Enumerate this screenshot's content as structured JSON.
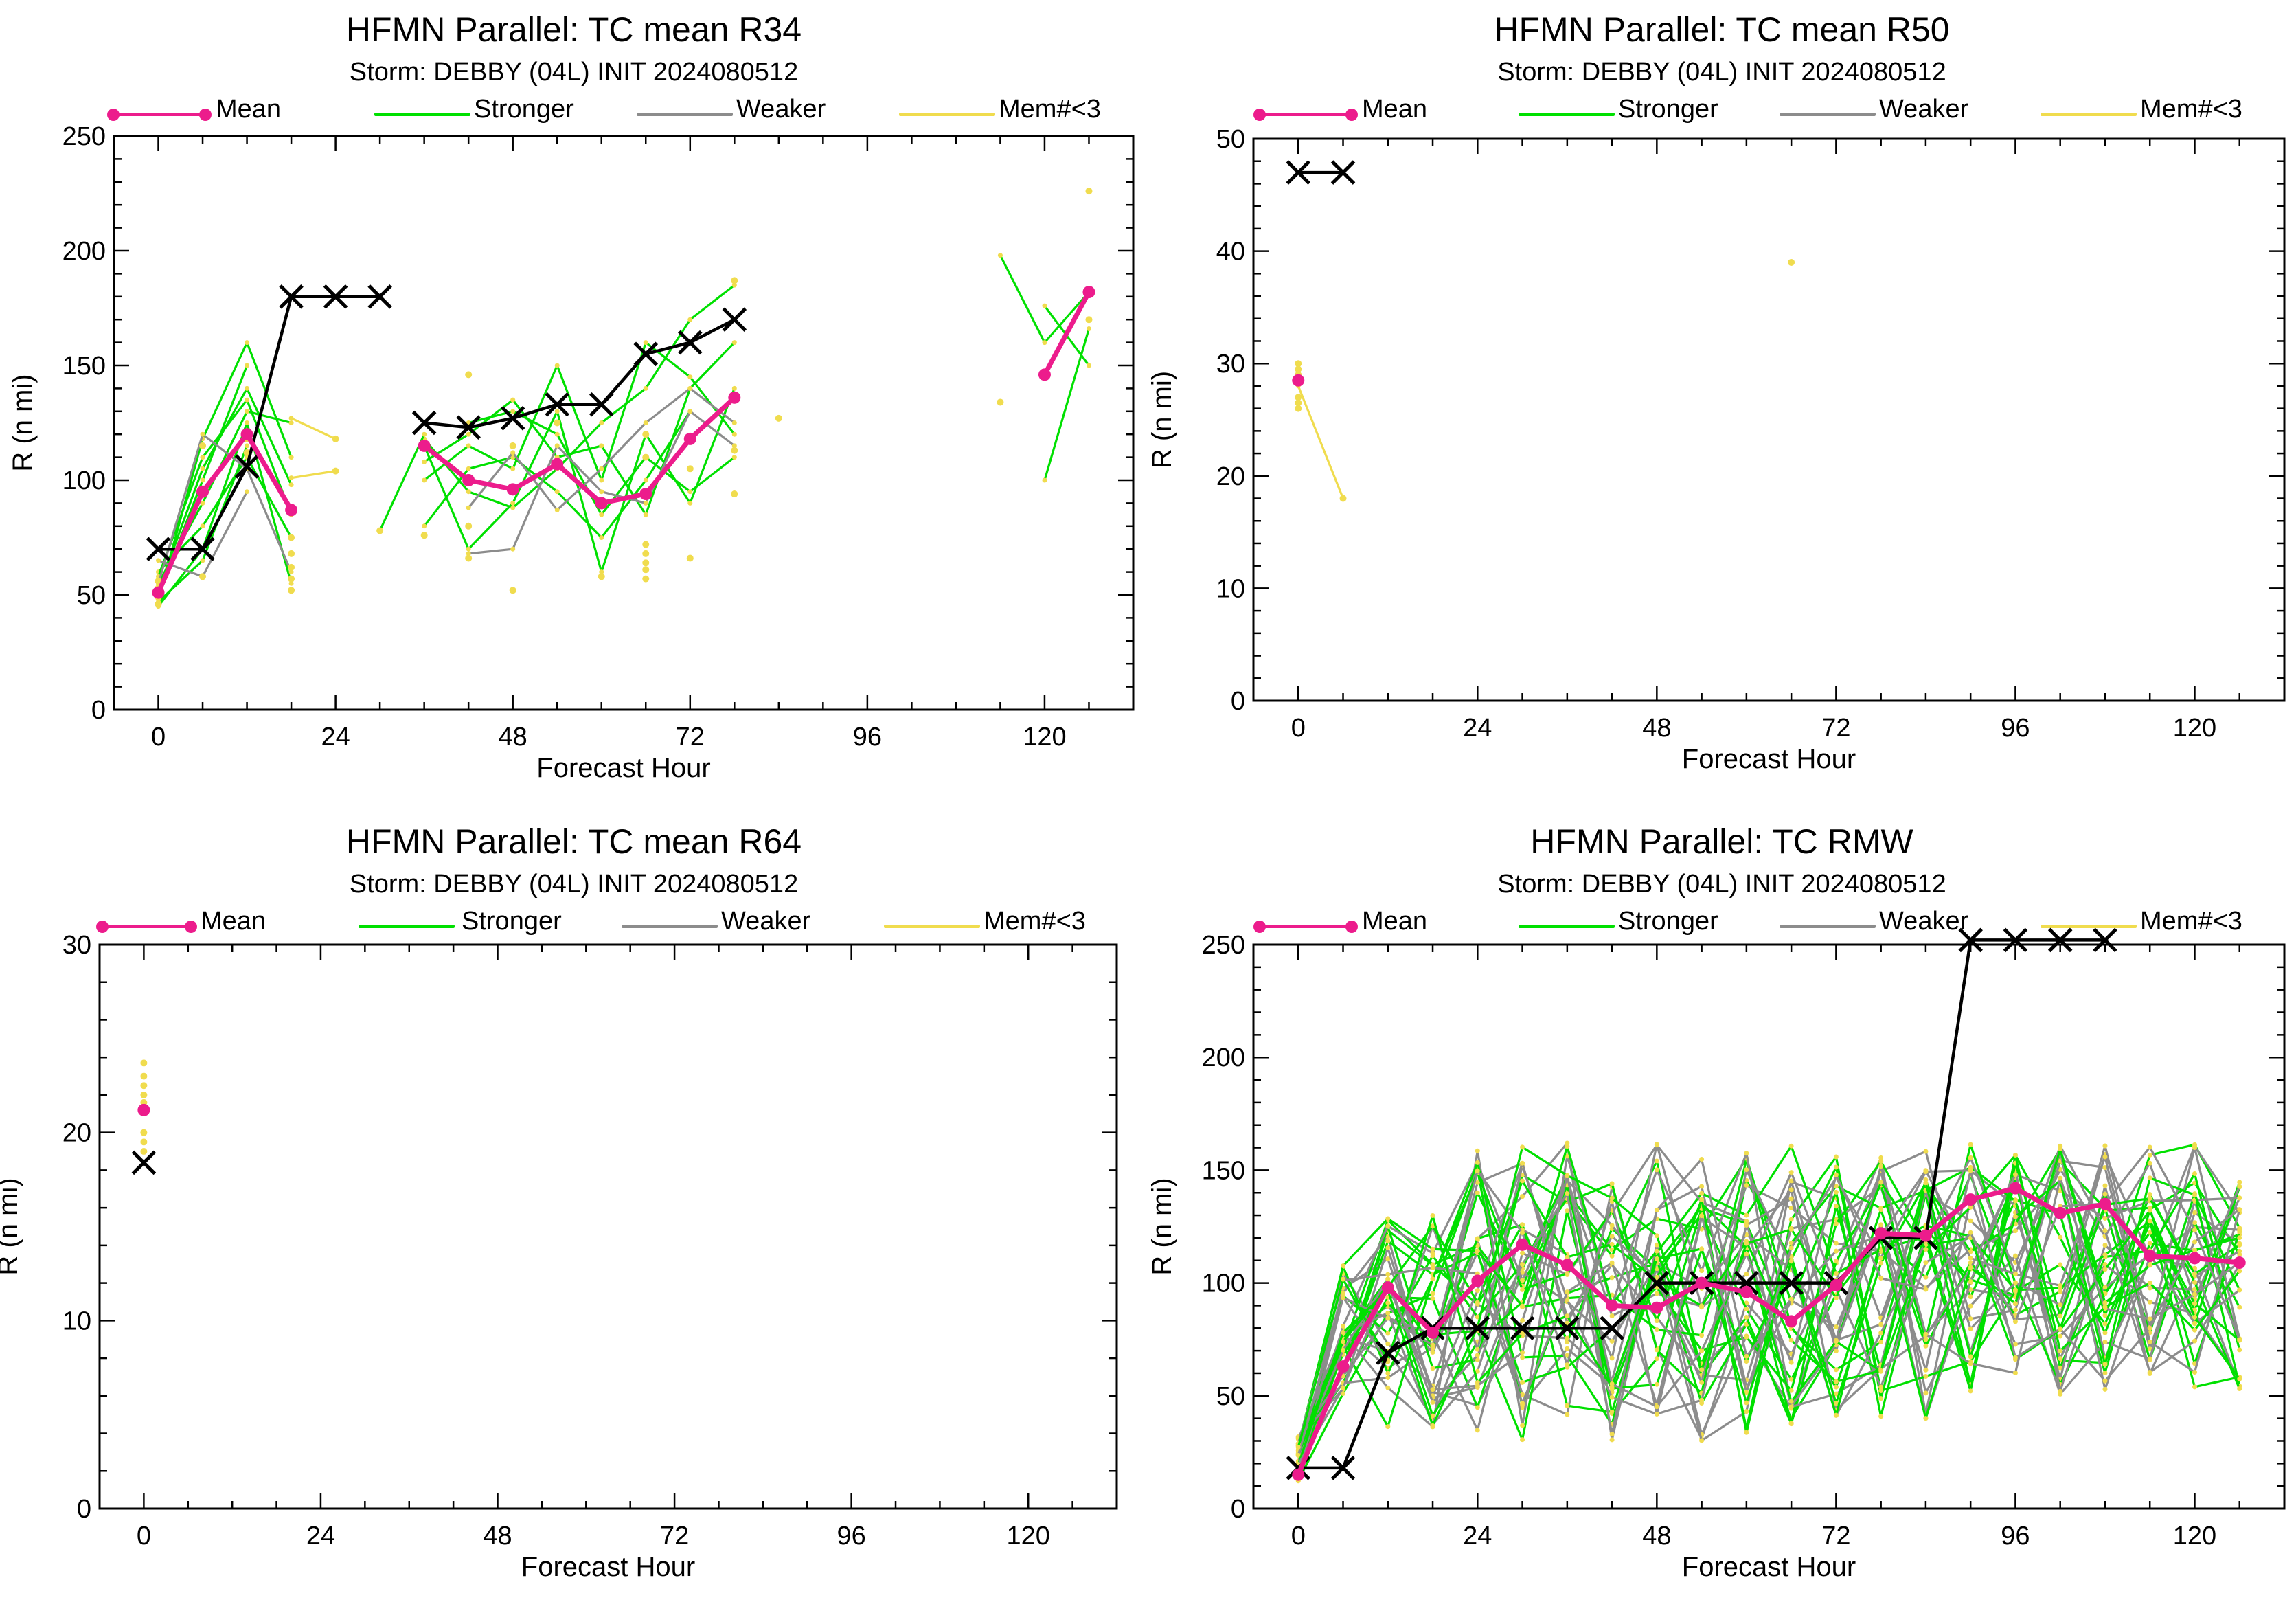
{
  "legend": {
    "mean_label": "Mean",
    "stronger_label": "Stronger",
    "weaker_label": "Weaker",
    "mem_label": "Mem#<3"
  },
  "colors": {
    "mean": "#ec1c8c",
    "stronger": "#00e000",
    "weaker": "#8c8c8c",
    "mem": "#f0dc4e",
    "obs": "#000000"
  },
  "chart_data": [
    {
      "type": "line",
      "title": "HFMN Parallel: TC mean R34",
      "subtitle": "Storm: DEBBY (04L) INIT 2024080512",
      "xlabel": "Forecast Hour",
      "ylabel": "R (n mi)",
      "xlim": [
        -6,
        132
      ],
      "ylim": [
        0,
        250
      ],
      "xticks": [
        0,
        24,
        48,
        72,
        96,
        120
      ],
      "yticks": [
        0,
        50,
        100,
        150,
        200,
        250
      ],
      "grid": false,
      "legend_position": "top",
      "series": [
        {
          "name": "Mean",
          "x": [
            0,
            6,
            12,
            18
          ],
          "y": [
            51,
            95,
            120,
            87
          ]
        },
        {
          "name": "Mean",
          "x": [
            36,
            42,
            48,
            54,
            60,
            66,
            72,
            78
          ],
          "y": [
            115,
            100,
            96,
            107,
            90,
            94,
            118,
            136
          ]
        },
        {
          "name": "Mean",
          "x": [
            120,
            126
          ],
          "y": [
            146,
            182
          ]
        },
        {
          "x": [
            0,
            6,
            12,
            18,
            24,
            30
          ],
          "y": [
            70,
            70,
            106,
            180,
            180,
            180
          ]
        },
        {
          "x": [
            36,
            42,
            48,
            54,
            60,
            66,
            72,
            78
          ],
          "y": [
            125,
            123,
            127,
            133,
            133,
            155,
            160,
            170
          ]
        }
      ],
      "members": [
        {
          "kind": "stronger",
          "x": [
            0,
            6,
            12,
            18
          ],
          "y": [
            48,
            118,
            160,
            110
          ]
        },
        {
          "kind": "stronger",
          "x": [
            0,
            6,
            12,
            18
          ],
          "y": [
            52,
            105,
            140,
            98
          ]
        },
        {
          "kind": "stronger",
          "x": [
            0,
            6,
            12,
            18
          ],
          "y": [
            55,
            90,
            130,
            125
          ]
        },
        {
          "kind": "stronger",
          "x": [
            0,
            6,
            12,
            18
          ],
          "y": [
            60,
            80,
            110,
            75
          ]
        },
        {
          "kind": "stronger",
          "x": [
            0,
            6,
            12,
            18
          ],
          "y": [
            45,
            70,
            125,
            55
          ]
        },
        {
          "kind": "stronger",
          "x": [
            0,
            6,
            12,
            18
          ],
          "y": [
            58,
            110,
            135,
            85
          ]
        },
        {
          "kind": "stronger",
          "x": [
            0,
            6,
            12
          ],
          "y": [
            50,
            100,
            150
          ]
        },
        {
          "kind": "stronger",
          "x": [
            0,
            6,
            12
          ],
          "y": [
            47,
            65,
            115
          ]
        },
        {
          "kind": "weaker",
          "x": [
            0,
            6,
            12,
            18
          ],
          "y": [
            55,
            120,
            105,
            60
          ]
        },
        {
          "kind": "weaker",
          "x": [
            0,
            6,
            12
          ],
          "y": [
            65,
            58,
            95
          ]
        },
        {
          "kind": "mem",
          "x": [
            18,
            24
          ],
          "y": [
            127,
            118
          ]
        },
        {
          "kind": "mem",
          "x": [
            18,
            24
          ],
          "y": [
            101,
            104
          ]
        },
        {
          "kind": "stronger",
          "x": [
            36,
            42,
            48,
            54,
            60,
            66,
            72,
            78
          ],
          "y": [
            108,
            120,
            135,
            110,
            115,
            85,
            140,
            160
          ]
        },
        {
          "kind": "stronger",
          "x": [
            36,
            42,
            48,
            54,
            60,
            66,
            72,
            78
          ],
          "y": [
            118,
            95,
            88,
            105,
            125,
            140,
            170,
            185
          ]
        },
        {
          "kind": "stronger",
          "x": [
            36,
            42,
            48,
            54,
            60,
            66,
            72,
            78
          ],
          "y": [
            100,
            115,
            105,
            150,
            100,
            160,
            145,
            120
          ]
        },
        {
          "kind": "stronger",
          "x": [
            36,
            42,
            48,
            54,
            60,
            66,
            72,
            78
          ],
          "y": [
            115,
            70,
            90,
            130,
            60,
            120,
            90,
            140
          ]
        },
        {
          "kind": "stronger",
          "x": [
            36,
            42,
            48,
            54,
            60,
            66,
            72
          ],
          "y": [
            80,
            105,
            110,
            95,
            75,
            100,
            130
          ]
        },
        {
          "kind": "stronger",
          "x": [
            42,
            48,
            54,
            60,
            66,
            72,
            78
          ],
          "y": [
            125,
            130,
            120,
            85,
            110,
            95,
            110
          ]
        },
        {
          "kind": "stronger",
          "x": [
            30,
            36
          ],
          "y": [
            78,
            120
          ]
        },
        {
          "kind": "weaker",
          "x": [
            42,
            48,
            54,
            60,
            66,
            72,
            78
          ],
          "y": [
            68,
            70,
            115,
            95,
            90,
            130,
            115
          ]
        },
        {
          "kind": "weaker",
          "x": [
            42,
            48,
            54,
            60,
            66,
            72,
            78
          ],
          "y": [
            88,
            112,
            87,
            105,
            125,
            140,
            125
          ]
        },
        {
          "kind": "stronger",
          "x": [
            114,
            120,
            126
          ],
          "y": [
            198,
            160,
            182
          ]
        },
        {
          "kind": "stronger",
          "x": [
            120,
            126
          ],
          "y": [
            100,
            166
          ]
        },
        {
          "kind": "stronger",
          "x": [
            120,
            126
          ],
          "y": [
            176,
            150
          ]
        }
      ],
      "mem_points": [
        [
          0,
          46
        ],
        [
          0,
          49
        ],
        [
          0,
          53
        ],
        [
          0,
          56
        ],
        [
          6,
          115
        ],
        [
          6,
          58
        ],
        [
          12,
          112
        ],
        [
          12,
          118
        ],
        [
          18,
          52
        ],
        [
          18,
          57
        ],
        [
          18,
          62
        ],
        [
          18,
          68
        ],
        [
          18,
          75
        ],
        [
          24,
          104
        ],
        [
          24,
          118
        ],
        [
          30,
          78
        ],
        [
          36,
          76
        ],
        [
          42,
          146
        ],
        [
          42,
          80
        ],
        [
          42,
          66
        ],
        [
          48,
          52
        ],
        [
          48,
          115
        ],
        [
          54,
          125
        ],
        [
          60,
          58
        ],
        [
          66,
          57
        ],
        [
          66,
          61
        ],
        [
          66,
          64
        ],
        [
          66,
          68
        ],
        [
          66,
          120
        ],
        [
          66,
          110
        ],
        [
          66,
          72
        ],
        [
          72,
          66
        ],
        [
          72,
          105
        ],
        [
          78,
          94
        ],
        [
          78,
          113
        ],
        [
          78,
          187
        ],
        [
          84,
          127
        ],
        [
          114,
          134
        ],
        [
          126,
          226
        ],
        [
          126,
          170
        ]
      ]
    },
    {
      "type": "line",
      "title": "HFMN Parallel: TC mean R50",
      "subtitle": "Storm: DEBBY (04L) INIT 2024080512",
      "xlabel": "Forecast Hour",
      "ylabel": "R (n mi)",
      "xlim": [
        -6,
        132
      ],
      "ylim": [
        0,
        50
      ],
      "xticks": [
        0,
        24,
        48,
        72,
        96,
        120
      ],
      "yticks": [
        0,
        10,
        20,
        30,
        40,
        50
      ],
      "grid": false,
      "legend_position": "top",
      "series": [
        {
          "name": "Mean",
          "x": [
            0
          ],
          "y": [
            28.5
          ]
        },
        {
          "x": [
            0,
            6
          ],
          "y": [
            47,
            47
          ]
        }
      ],
      "members": [
        {
          "kind": "mem",
          "x": [
            0,
            6
          ],
          "y": [
            28,
            18
          ]
        }
      ],
      "mem_points": [
        [
          0,
          30
        ],
        [
          0,
          29.5
        ],
        [
          0,
          29
        ],
        [
          0,
          27
        ],
        [
          0,
          26.5
        ],
        [
          0,
          26
        ],
        [
          6,
          18
        ],
        [
          66,
          39
        ]
      ]
    },
    {
      "type": "line",
      "title": "HFMN Parallel: TC mean R64",
      "subtitle": "Storm: DEBBY (04L) INIT 2024080512",
      "xlabel": "Forecast Hour",
      "ylabel": "R (n mi)",
      "xlim": [
        -6,
        132
      ],
      "ylim": [
        0,
        30
      ],
      "xticks": [
        0,
        24,
        48,
        72,
        96,
        120
      ],
      "yticks": [
        0,
        10,
        20,
        30
      ],
      "grid": false,
      "legend_position": "top",
      "series": [
        {
          "name": "Mean",
          "x": [
            0
          ],
          "y": [
            21.2
          ]
        },
        {
          "x": [
            0
          ],
          "y": [
            18.4
          ]
        }
      ],
      "members": [],
      "mem_points": [
        [
          0,
          23.7
        ],
        [
          0,
          23.0
        ],
        [
          0,
          22.5
        ],
        [
          0,
          22.0
        ],
        [
          0,
          21.6
        ],
        [
          0,
          20.0
        ],
        [
          0,
          19.5
        ],
        [
          0,
          19.0
        ]
      ]
    },
    {
      "type": "line",
      "title": "HFMN Parallel: TC RMW",
      "subtitle": "Storm: DEBBY (04L) INIT 2024080512",
      "xlabel": "Forecast Hour",
      "ylabel": "R (n mi)",
      "xlim": [
        -6,
        132
      ],
      "ylim": [
        0,
        250
      ],
      "xticks": [
        0,
        24,
        48,
        72,
        96,
        120
      ],
      "yticks": [
        0,
        50,
        100,
        150,
        200,
        250
      ],
      "grid": false,
      "legend_position": "top",
      "series": [
        {
          "name": "Mean",
          "x": [
            0,
            6,
            12,
            18,
            24,
            30,
            36,
            42,
            48,
            54,
            60,
            66,
            72,
            78,
            84,
            90,
            96,
            102,
            108,
            114,
            120,
            126
          ],
          "y": [
            15,
            63,
            98,
            78,
            101,
            117,
            108,
            90,
            89,
            100,
            96,
            83,
            99,
            122,
            121,
            137,
            142,
            131,
            135,
            112,
            111,
            109
          ]
        },
        {
          "x": [
            0,
            6,
            12,
            18,
            24,
            30,
            36,
            42,
            48,
            54,
            60,
            66,
            72,
            78,
            84,
            90,
            96,
            102,
            108
          ],
          "y": [
            18,
            18,
            69,
            80,
            80,
            80,
            80,
            80,
            100,
            100,
            100,
            100,
            100,
            120,
            120,
            252,
            252,
            252,
            252
          ]
        }
      ],
      "members": [],
      "mem_points": []
    }
  ]
}
